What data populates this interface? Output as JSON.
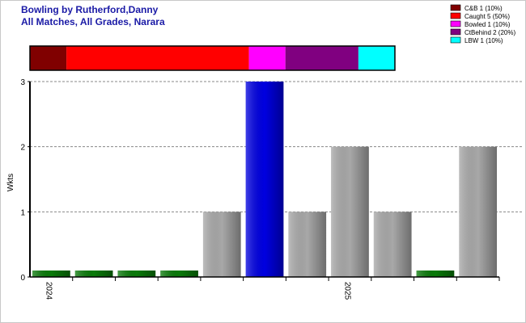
{
  "chart_data": [
    {
      "type": "bar",
      "title": "Bowling by Rutherford,Danny",
      "subtitle": "All Matches, All Grades, Narara",
      "y_label": "Wkts",
      "categories": [
        "2024",
        null,
        null,
        null,
        null,
        null,
        null,
        "2025",
        null,
        null,
        null
      ],
      "values": [
        0,
        0,
        0,
        0,
        1,
        3,
        1,
        2,
        1,
        0,
        2
      ],
      "bar_colors": [
        "#0a7a0a",
        "#0a7a0a",
        "#0a7a0a",
        "#0a7a0a",
        "#a8a8a8",
        "#0000e0",
        "#a8a8a8",
        "#a8a8a8",
        "#a8a8a8",
        "#0a7a0a",
        "#a8a8a8"
      ],
      "ylim": [
        0,
        3
      ],
      "yticks": [
        0,
        1,
        2,
        3
      ],
      "grid": true
    },
    {
      "type": "stacked-proportion",
      "legend": "top-right",
      "series": [
        {
          "name": "C&B 1 (10%)",
          "color": "#800000",
          "values": [
            10
          ]
        },
        {
          "name": "Caught 5 (50%)",
          "color": "#ff0000",
          "values": [
            50
          ]
        },
        {
          "name": "Bowled 1 (10%)",
          "color": "#ff00ff",
          "values": [
            10
          ]
        },
        {
          "name": "CtBehind 2 (20%)",
          "color": "#800080",
          "values": [
            20
          ]
        },
        {
          "name": "LBW 1 (10%)",
          "color": "#00ffff",
          "values": [
            10
          ]
        }
      ]
    }
  ]
}
